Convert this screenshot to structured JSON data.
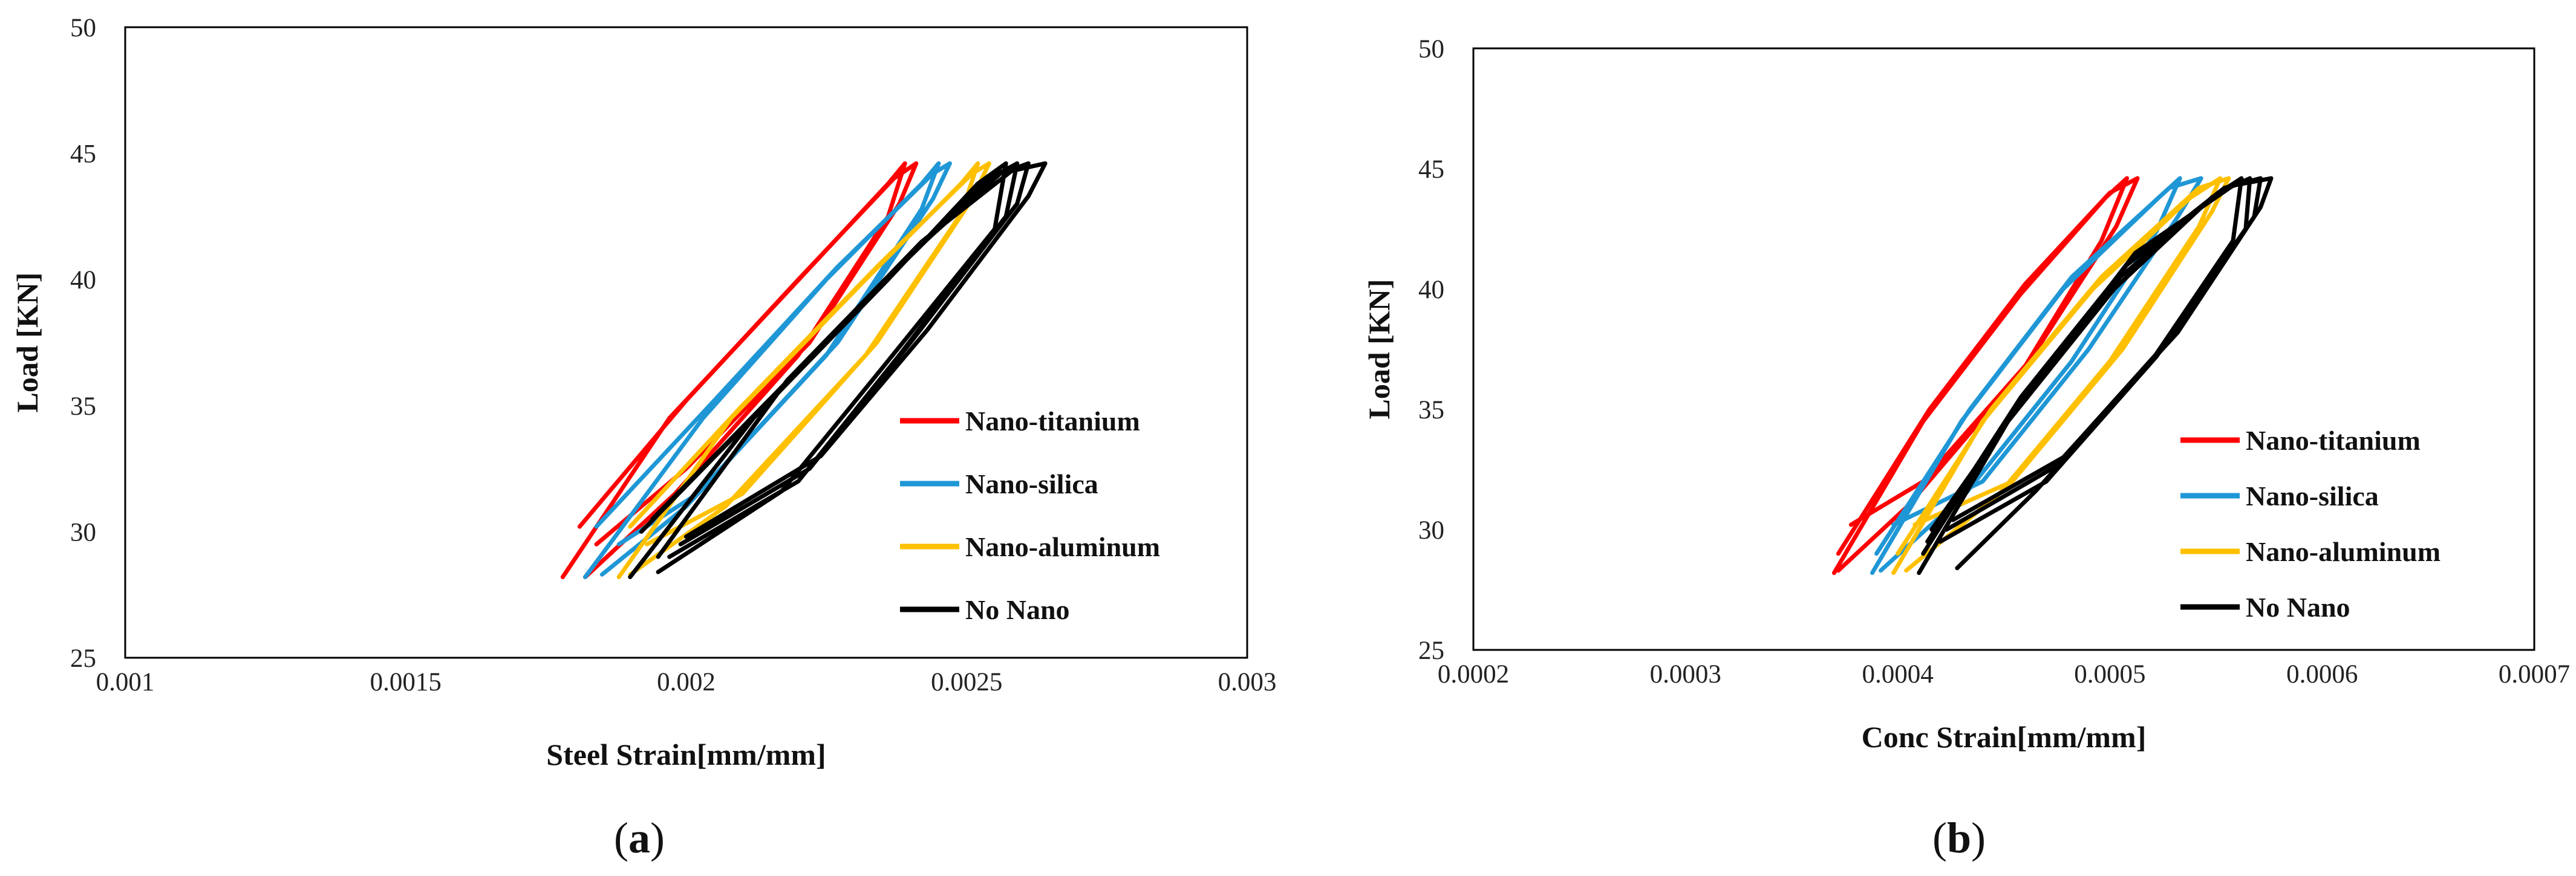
{
  "figure": {
    "panels": [
      {
        "caption_open": "(",
        "caption_letter": "a",
        "caption_close": ")"
      },
      {
        "caption_open": "(",
        "caption_letter": "b",
        "caption_close": ")"
      }
    ]
  },
  "chart_data": [
    {
      "type": "line",
      "title": "",
      "xlabel": "Steel Strain[mm/mm]",
      "ylabel": "Load [KN]",
      "xlim": [
        0.001,
        0.003
      ],
      "ylim": [
        25,
        50
      ],
      "xticks": [
        "0.001",
        "0.0015",
        "0.002",
        "0.0025",
        "0.003"
      ],
      "xtick_values": [
        0.001,
        0.0015,
        0.002,
        0.0025,
        0.003
      ],
      "yticks": [
        "25",
        "30",
        "35",
        "40",
        "45",
        "50"
      ],
      "ytick_values": [
        25,
        30,
        35,
        40,
        45,
        50
      ],
      "legend_position": "right-center",
      "series": [
        {
          "name": "Nano-titanium",
          "color": "#ff0000",
          "loops": [
            [
              [
                0.00178,
                28.2
              ],
              [
                0.00197,
                34.5
              ],
              [
                0.00218,
                39.5
              ],
              [
                0.00236,
                43.8
              ],
              [
                0.00239,
                44.6
              ],
              [
                0.00236,
                42.5
              ],
              [
                0.0022,
                37.0
              ],
              [
                0.00198,
                31.5
              ],
              [
                0.00182,
                28.2
              ]
            ],
            [
              [
                0.00181,
                30.2
              ],
              [
                0.002,
                35.2
              ],
              [
                0.0022,
                40.0
              ],
              [
                0.00237,
                44.0
              ],
              [
                0.00241,
                44.6
              ],
              [
                0.00238,
                43.0
              ],
              [
                0.00222,
                37.5
              ],
              [
                0.002,
                32.5
              ],
              [
                0.00184,
                29.5
              ]
            ]
          ]
        },
        {
          "name": "Nano-silica",
          "color": "#1f97d6",
          "loops": [
            [
              [
                0.00182,
                28.2
              ],
              [
                0.00203,
                34.5
              ],
              [
                0.00225,
                40.0
              ],
              [
                0.00242,
                43.8
              ],
              [
                0.00245,
                44.6
              ],
              [
                0.00242,
                42.8
              ],
              [
                0.00225,
                37.0
              ],
              [
                0.002,
                31.0
              ],
              [
                0.00185,
                28.3
              ]
            ],
            [
              [
                0.00184,
                30.2
              ],
              [
                0.00205,
                35.2
              ],
              [
                0.00227,
                40.5
              ],
              [
                0.00244,
                44.2
              ],
              [
                0.00247,
                44.6
              ],
              [
                0.00244,
                43.2
              ],
              [
                0.00227,
                37.5
              ],
              [
                0.00202,
                31.5
              ],
              [
                0.00188,
                29.5
              ]
            ]
          ]
        },
        {
          "name": "Nano-aluminum",
          "color": "#ffc000",
          "loops": [
            [
              [
                0.00188,
                28.2
              ],
              [
                0.00208,
                34.5
              ],
              [
                0.00232,
                40.0
              ],
              [
                0.00249,
                43.8
              ],
              [
                0.00252,
                44.6
              ],
              [
                0.00249,
                42.6
              ],
              [
                0.00232,
                37.0
              ],
              [
                0.00207,
                31.0
              ],
              [
                0.0019,
                28.3
              ]
            ],
            [
              [
                0.0019,
                30.2
              ],
              [
                0.0021,
                35.0
              ],
              [
                0.00234,
                40.5
              ],
              [
                0.00251,
                44.2
              ],
              [
                0.00254,
                44.6
              ],
              [
                0.00251,
                43.2
              ],
              [
                0.00234,
                37.5
              ],
              [
                0.0021,
                31.5
              ],
              [
                0.00193,
                29.5
              ]
            ]
          ]
        },
        {
          "name": "No Nano",
          "color": "#000000",
          "loops": [
            [
              [
                0.0019,
                28.2
              ],
              [
                0.00212,
                34.5
              ],
              [
                0.00236,
                40.0
              ],
              [
                0.00252,
                43.8
              ],
              [
                0.00257,
                44.6
              ],
              [
                0.00255,
                42.0
              ],
              [
                0.00235,
                36.5
              ],
              [
                0.00217,
                31.6
              ],
              [
                0.00195,
                28.4
              ]
            ],
            [
              [
                0.00192,
                30.0
              ],
              [
                0.00214,
                35.0
              ],
              [
                0.00238,
                40.5
              ],
              [
                0.00254,
                44.0
              ],
              [
                0.00259,
                44.6
              ],
              [
                0.00257,
                42.5
              ],
              [
                0.00238,
                37.0
              ],
              [
                0.0022,
                32.0
              ],
              [
                0.00197,
                29.0
              ]
            ],
            [
              [
                0.00194,
                30.5
              ],
              [
                0.00216,
                35.5
              ],
              [
                0.0024,
                41.0
              ],
              [
                0.00256,
                44.2
              ],
              [
                0.00261,
                44.6
              ],
              [
                0.00259,
                43.0
              ],
              [
                0.0024,
                37.5
              ],
              [
                0.00222,
                32.5
              ],
              [
                0.00199,
                29.5
              ]
            ],
            [
              [
                0.00195,
                29.0
              ],
              [
                0.00218,
                36.0
              ],
              [
                0.00242,
                41.5
              ],
              [
                0.00258,
                44.3
              ],
              [
                0.00264,
                44.6
              ],
              [
                0.00261,
                43.3
              ],
              [
                0.00243,
                38.0
              ],
              [
                0.00224,
                33.0
              ],
              [
                0.002,
                29.8
              ]
            ]
          ]
        }
      ]
    },
    {
      "type": "line",
      "title": "",
      "xlabel": "Conc Strain[mm/mm]",
      "ylabel": "Load [KN]",
      "xlim": [
        0.0002,
        0.0007
      ],
      "ylim": [
        25,
        50
      ],
      "xticks": [
        "0.0002",
        "0.0003",
        "0.0004",
        "0.0005",
        "0.0006",
        "0.0007"
      ],
      "xtick_values": [
        0.0002,
        0.0003,
        0.0004,
        0.0005,
        0.0006,
        0.0007
      ],
      "yticks": [
        "25",
        "30",
        "35",
        "40",
        "45",
        "50"
      ],
      "ytick_values": [
        25,
        30,
        35,
        40,
        45,
        50
      ],
      "legend_position": "right-center",
      "series": [
        {
          "name": "Nano-titanium",
          "color": "#ff0000",
          "loops": [
            [
              [
                0.00037,
                28.2
              ],
              [
                0.000412,
                34.5
              ],
              [
                0.000458,
                39.8
              ],
              [
                0.000498,
                43.8
              ],
              [
                0.000508,
                44.6
              ],
              [
                0.000496,
                42.0
              ],
              [
                0.000458,
                36.5
              ],
              [
                0.000405,
                31.0
              ],
              [
                0.000372,
                28.3
              ]
            ],
            [
              [
                0.000372,
                29.0
              ],
              [
                0.000415,
                35.0
              ],
              [
                0.00046,
                40.2
              ],
              [
                0.0005,
                44.0
              ],
              [
                0.000513,
                44.6
              ],
              [
                0.000503,
                42.6
              ],
              [
                0.000462,
                37.0
              ],
              [
                0.000412,
                32.0
              ],
              [
                0.000378,
                30.2
              ]
            ]
          ]
        },
        {
          "name": "Nano-silica",
          "color": "#1f97d6",
          "loops": [
            [
              [
                0.000388,
                28.2
              ],
              [
                0.00043,
                34.5
              ],
              [
                0.000478,
                40.0
              ],
              [
                0.000523,
                43.8
              ],
              [
                0.000533,
                44.6
              ],
              [
                0.000522,
                42.4
              ],
              [
                0.000482,
                37.0
              ],
              [
                0.000432,
                31.5
              ],
              [
                0.000392,
                28.3
              ]
            ],
            [
              [
                0.00039,
                29.0
              ],
              [
                0.000434,
                35.0
              ],
              [
                0.000482,
                40.5
              ],
              [
                0.000528,
                44.2
              ],
              [
                0.000543,
                44.6
              ],
              [
                0.000532,
                43.0
              ],
              [
                0.00049,
                37.5
              ],
              [
                0.00044,
                32.0
              ],
              [
                0.000398,
                30.2
              ]
            ]
          ]
        },
        {
          "name": "Nano-aluminum",
          "color": "#ffc000",
          "loops": [
            [
              [
                0.000398,
                28.2
              ],
              [
                0.00044,
                34.5
              ],
              [
                0.000492,
                40.0
              ],
              [
                0.000538,
                43.8
              ],
              [
                0.000552,
                44.6
              ],
              [
                0.000542,
                42.6
              ],
              [
                0.0005,
                37.0
              ],
              [
                0.000448,
                31.5
              ],
              [
                0.000404,
                28.3
              ]
            ],
            [
              [
                0.0004,
                29.0
              ],
              [
                0.000444,
                35.0
              ],
              [
                0.000496,
                40.5
              ],
              [
                0.000542,
                44.2
              ],
              [
                0.000556,
                44.6
              ],
              [
                0.000548,
                43.2
              ],
              [
                0.000506,
                37.5
              ],
              [
                0.000454,
                32.0
              ],
              [
                0.000408,
                30.2
              ]
            ]
          ]
        },
        {
          "name": "No Nano",
          "color": "#000000",
          "loops": [
            [
              [
                0.00041,
                28.2
              ],
              [
                0.000452,
                34.5
              ],
              [
                0.000502,
                40.0
              ],
              [
                0.000548,
                43.8
              ],
              [
                0.000562,
                44.6
              ],
              [
                0.000558,
                42.0
              ],
              [
                0.000518,
                36.8
              ],
              [
                0.000465,
                31.6
              ],
              [
                0.000428,
                28.4
              ]
            ],
            [
              [
                0.000412,
                29.0
              ],
              [
                0.000455,
                35.0
              ],
              [
                0.000505,
                40.5
              ],
              [
                0.000551,
                44.0
              ],
              [
                0.000566,
                44.6
              ],
              [
                0.000564,
                42.5
              ],
              [
                0.000522,
                37.2
              ],
              [
                0.00047,
                32.0
              ],
              [
                0.00042,
                29.5
              ]
            ],
            [
              [
                0.000414,
                29.5
              ],
              [
                0.000458,
                35.5
              ],
              [
                0.000508,
                41.0
              ],
              [
                0.000554,
                44.2
              ],
              [
                0.000571,
                44.6
              ],
              [
                0.000568,
                43.0
              ],
              [
                0.000527,
                37.8
              ],
              [
                0.000474,
                32.6
              ],
              [
                0.000423,
                30.0
              ]
            ],
            [
              [
                0.000416,
                30.0
              ],
              [
                0.00046,
                35.5
              ],
              [
                0.000512,
                41.5
              ],
              [
                0.000558,
                44.3
              ],
              [
                0.000576,
                44.6
              ],
              [
                0.000571,
                43.4
              ],
              [
                0.000532,
                38.2
              ],
              [
                0.000478,
                33.0
              ],
              [
                0.000426,
                30.4
              ]
            ]
          ]
        }
      ]
    }
  ]
}
